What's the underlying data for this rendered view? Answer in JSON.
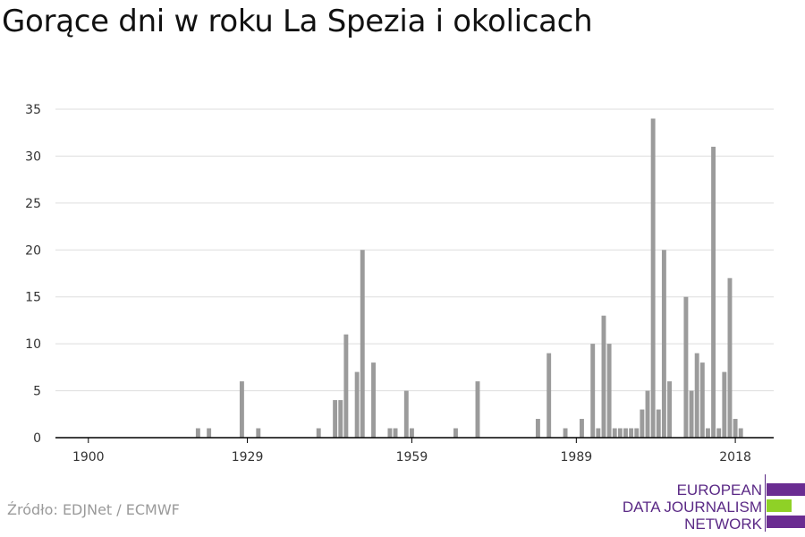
{
  "title": "Gorące dni w roku La Spezia i okolicach",
  "source": "Źródło: EDJNet / ECMWF",
  "logo": {
    "lines": [
      "EUROPEAN",
      "DATA JOURNALISM",
      "NETWORK"
    ],
    "colors": {
      "purple": "#6a2c91",
      "green": "#8fd126"
    }
  },
  "colors": {
    "bar": "#9b9b9b",
    "grid": "#dddddd",
    "axis": "#000000"
  },
  "chart_data": {
    "type": "bar",
    "title": "Gorące dni w roku La Spezia i okolicach",
    "xlabel": "",
    "ylabel": "",
    "xlim": [
      1894,
      2025
    ],
    "ylim": [
      0,
      35
    ],
    "x_ticks": [
      1900,
      1929,
      1959,
      1989,
      2018
    ],
    "y_ticks": [
      0,
      5,
      10,
      15,
      20,
      25,
      30,
      35
    ],
    "grid": true,
    "x": [
      1920,
      1922,
      1928,
      1931,
      1942,
      1945,
      1946,
      1947,
      1949,
      1950,
      1952,
      1955,
      1956,
      1958,
      1959,
      1967,
      1971,
      1982,
      1984,
      1987,
      1990,
      1992,
      1993,
      1994,
      1995,
      1996,
      1997,
      1998,
      1999,
      2000,
      2001,
      2002,
      2003,
      2004,
      2005,
      2006,
      2009,
      2010,
      2011,
      2012,
      2013,
      2014,
      2015,
      2016,
      2017,
      2018,
      2019
    ],
    "values": [
      1,
      1,
      6,
      1,
      1,
      4,
      4,
      11,
      7,
      20,
      8,
      1,
      1,
      5,
      1,
      1,
      6,
      2,
      9,
      1,
      2,
      10,
      1,
      13,
      10,
      1,
      1,
      1,
      1,
      1,
      3,
      5,
      34,
      3,
      20,
      6,
      15,
      5,
      9,
      8,
      1,
      31,
      1,
      7,
      17,
      2,
      1
    ]
  }
}
